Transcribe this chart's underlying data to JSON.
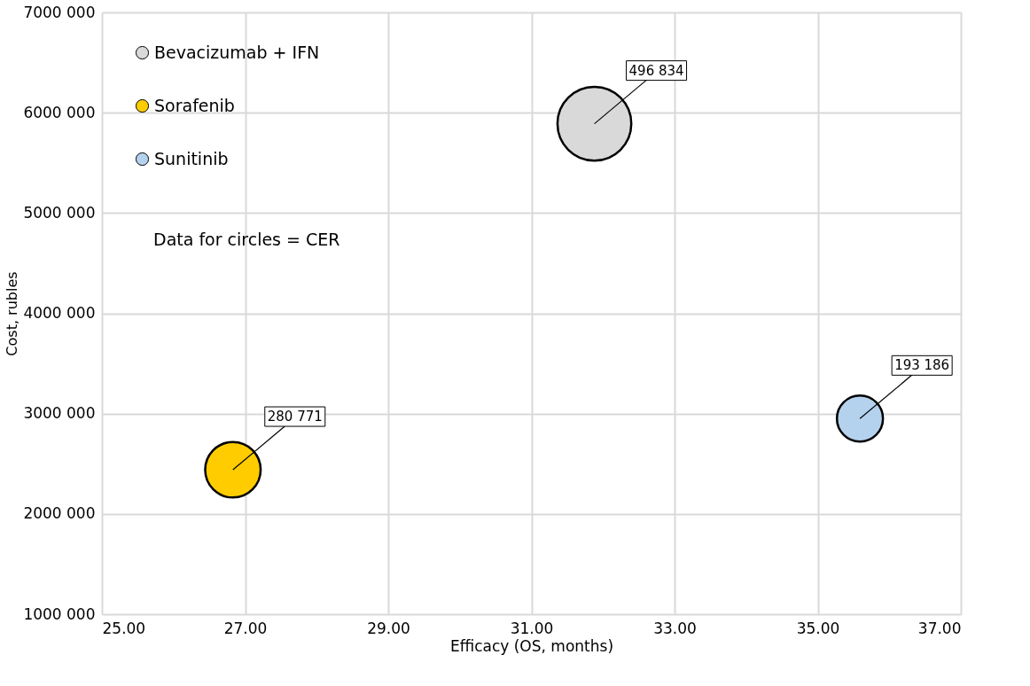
{
  "chart_data": {
    "type": "bubble",
    "xlabel": "Efficacy (OS, months)",
    "ylabel": "Cost, rubles",
    "xlim": [
      25,
      37
    ],
    "xticks": [
      {
        "value": 25,
        "label": "25.00"
      },
      {
        "value": 27,
        "label": "27.00"
      },
      {
        "value": 29,
        "label": "29.00"
      },
      {
        "value": 31,
        "label": "31.00"
      },
      {
        "value": 33,
        "label": "33.00"
      },
      {
        "value": 35,
        "label": "35.00"
      },
      {
        "value": 37,
        "label": "37.00"
      }
    ],
    "ylim": [
      1000000,
      7000000
    ],
    "yticks": [
      {
        "value": 1000000,
        "label": "1000 000"
      },
      {
        "value": 2000000,
        "label": "2000 000"
      },
      {
        "value": 3000000,
        "label": "3000 000"
      },
      {
        "value": 4000000,
        "label": "4000 000"
      },
      {
        "value": 5000000,
        "label": "5000 000"
      },
      {
        "value": 6000000,
        "label": "6000 000"
      },
      {
        "value": 7000000,
        "label": "7000 000"
      }
    ],
    "grid": true,
    "legend": "top left",
    "annotations": [
      "Data for circles = CER",
      {
        "text": "496 834",
        "x": 31.88,
        "y": 5890000
      },
      {
        "text": "280 771",
        "x": 26.83,
        "y": 2440000
      },
      {
        "text": "193 186",
        "x": 35.59,
        "y": 2950000
      }
    ],
    "series": [
      {
        "name": "Bevacizumab + IFN",
        "color": "#d9d9d9",
        "x": [
          31.88
        ],
        "values": [
          5890000
        ],
        "sizes": [
          1
        ]
      },
      {
        "name": "Sorafenib",
        "color": "#ffcc00",
        "x": [
          26.83
        ],
        "values": [
          2440000
        ],
        "sizes": [
          0.565
        ]
      },
      {
        "name": "Sunitinib",
        "color": "#b4d2ee",
        "x": [
          35.59
        ],
        "values": [
          2950000
        ],
        "sizes": [
          0.389
        ]
      }
    ]
  }
}
